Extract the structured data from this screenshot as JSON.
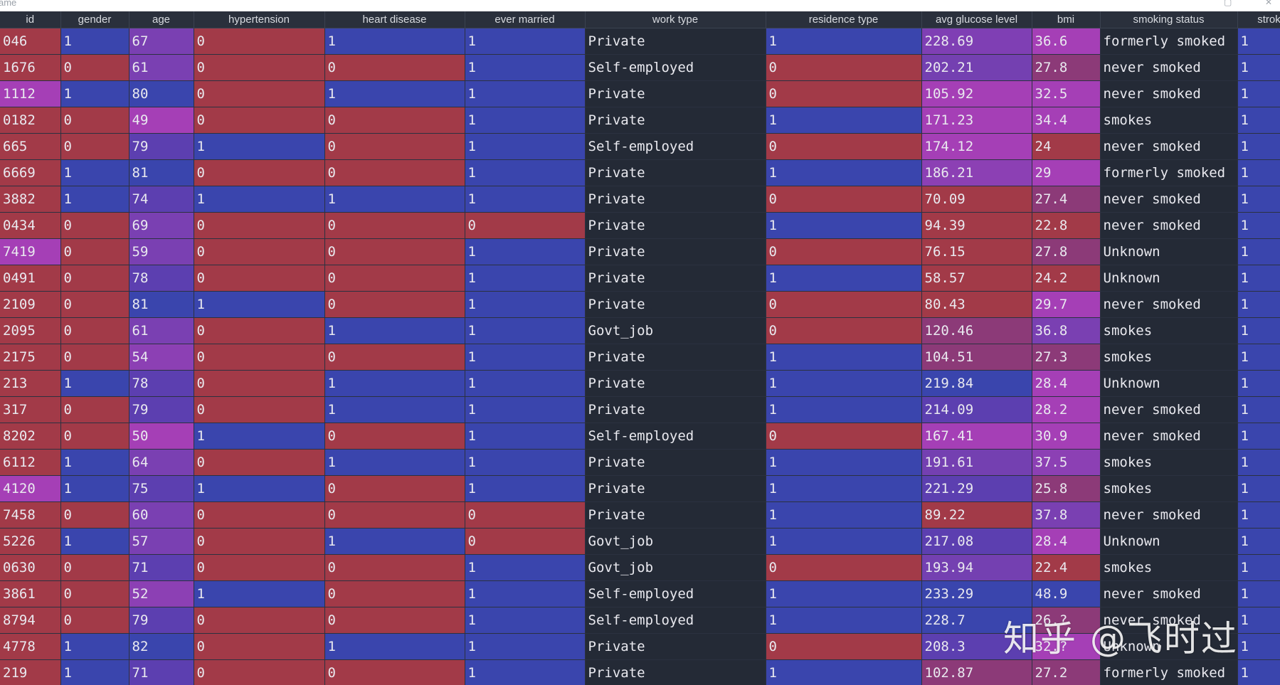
{
  "window": {
    "title": "ame",
    "restore_glyph": "▢",
    "close_glyph": "✕"
  },
  "columns": [
    "id",
    "gender",
    "age",
    "hypertension",
    "heart disease",
    "ever married",
    "work type",
    "residence type",
    "avg glucose level",
    "bmi",
    "smoking status",
    "strok"
  ],
  "rows": [
    [
      "046",
      "1",
      "67",
      "0",
      "1",
      "1",
      "Private",
      "1",
      "228.69",
      "36.6",
      "formerly smoked",
      "1"
    ],
    [
      "1676",
      "0",
      "61",
      "0",
      "0",
      "1",
      "Self-employed",
      "0",
      "202.21",
      "27.8",
      "never smoked",
      "1"
    ],
    [
      "1112",
      "1",
      "80",
      "0",
      "1",
      "1",
      "Private",
      "0",
      "105.92",
      "32.5",
      "never smoked",
      "1"
    ],
    [
      "0182",
      "0",
      "49",
      "0",
      "0",
      "1",
      "Private",
      "1",
      "171.23",
      "34.4",
      "smokes",
      "1"
    ],
    [
      "665",
      "0",
      "79",
      "1",
      "0",
      "1",
      "Self-employed",
      "0",
      "174.12",
      "24",
      "never smoked",
      "1"
    ],
    [
      "6669",
      "1",
      "81",
      "0",
      "0",
      "1",
      "Private",
      "1",
      "186.21",
      "29",
      "formerly smoked",
      "1"
    ],
    [
      "3882",
      "1",
      "74",
      "1",
      "1",
      "1",
      "Private",
      "0",
      "70.09",
      "27.4",
      "never smoked",
      "1"
    ],
    [
      "0434",
      "0",
      "69",
      "0",
      "0",
      "0",
      "Private",
      "1",
      "94.39",
      "22.8",
      "never smoked",
      "1"
    ],
    [
      "7419",
      "0",
      "59",
      "0",
      "0",
      "1",
      "Private",
      "0",
      "76.15",
      "27.8",
      "Unknown",
      "1"
    ],
    [
      "0491",
      "0",
      "78",
      "0",
      "0",
      "1",
      "Private",
      "1",
      "58.57",
      "24.2",
      "Unknown",
      "1"
    ],
    [
      "2109",
      "0",
      "81",
      "1",
      "0",
      "1",
      "Private",
      "0",
      "80.43",
      "29.7",
      "never smoked",
      "1"
    ],
    [
      "2095",
      "0",
      "61",
      "0",
      "1",
      "1",
      "Govt_job",
      "0",
      "120.46",
      "36.8",
      "smokes",
      "1"
    ],
    [
      "2175",
      "0",
      "54",
      "0",
      "0",
      "1",
      "Private",
      "1",
      "104.51",
      "27.3",
      "smokes",
      "1"
    ],
    [
      "213",
      "1",
      "78",
      "0",
      "1",
      "1",
      "Private",
      "1",
      "219.84",
      "28.4",
      "Unknown",
      "1"
    ],
    [
      "317",
      "0",
      "79",
      "0",
      "1",
      "1",
      "Private",
      "1",
      "214.09",
      "28.2",
      "never smoked",
      "1"
    ],
    [
      "8202",
      "0",
      "50",
      "1",
      "0",
      "1",
      "Self-employed",
      "0",
      "167.41",
      "30.9",
      "never smoked",
      "1"
    ],
    [
      "6112",
      "1",
      "64",
      "0",
      "1",
      "1",
      "Private",
      "1",
      "191.61",
      "37.5",
      "smokes",
      "1"
    ],
    [
      "4120",
      "1",
      "75",
      "1",
      "0",
      "1",
      "Private",
      "1",
      "221.29",
      "25.8",
      "smokes",
      "1"
    ],
    [
      "7458",
      "0",
      "60",
      "0",
      "0",
      "0",
      "Private",
      "1",
      "89.22",
      "37.8",
      "never smoked",
      "1"
    ],
    [
      "5226",
      "1",
      "57",
      "0",
      "1",
      "0",
      "Govt_job",
      "1",
      "217.08",
      "28.4",
      "Unknown",
      "1"
    ],
    [
      "0630",
      "0",
      "71",
      "0",
      "0",
      "1",
      "Govt_job",
      "0",
      "193.94",
      "22.4",
      "smokes",
      "1"
    ],
    [
      "3861",
      "0",
      "52",
      "1",
      "0",
      "1",
      "Self-employed",
      "1",
      "233.29",
      "48.9",
      "never smoked",
      "1"
    ],
    [
      "8794",
      "0",
      "79",
      "0",
      "0",
      "1",
      "Self-employed",
      "1",
      "228.7",
      "26.?",
      "never smoked",
      "1"
    ],
    [
      "4778",
      "1",
      "82",
      "0",
      "1",
      "1",
      "Private",
      "0",
      "208.3",
      "32.?",
      "Unknown",
      "1"
    ],
    [
      "219",
      "1",
      "71",
      "0",
      "0",
      "1",
      "Private",
      "1",
      "102.87",
      "27.2",
      "formerly smoked",
      "1"
    ]
  ],
  "cell_colors": [
    [
      "#a23a48",
      "#3a45ad",
      "#7a40b2",
      "#a23a48",
      "#3a45ad",
      "#3a45ad",
      "#242a36",
      "#3a45ad",
      "#7f3fb4",
      "#a53fb6",
      "#242a36",
      "#3a45ad"
    ],
    [
      "#a23a48",
      "#a23a48",
      "#7a40b2",
      "#a23a48",
      "#a23a48",
      "#3a45ad",
      "#242a36",
      "#a23a48",
      "#7440b1",
      "#8c3a78",
      "#242a36",
      "#3a45ad"
    ],
    [
      "#a53fb6",
      "#3a45ad",
      "#3a45ad",
      "#a23a48",
      "#3a45ad",
      "#3a45ad",
      "#242a36",
      "#a23a48",
      "#a53fb6",
      "#a53fb6",
      "#242a36",
      "#3a45ad"
    ],
    [
      "#a23a48",
      "#a23a48",
      "#a53fb6",
      "#a23a48",
      "#a23a48",
      "#3a45ad",
      "#242a36",
      "#3a45ad",
      "#a53fb6",
      "#a53fb6",
      "#242a36",
      "#3a45ad"
    ],
    [
      "#a23a48",
      "#a23a48",
      "#5c3fb0",
      "#3a45ad",
      "#a23a48",
      "#3a45ad",
      "#242a36",
      "#a23a48",
      "#a53fb6",
      "#a23a48",
      "#242a36",
      "#3a45ad"
    ],
    [
      "#a23a48",
      "#3a45ad",
      "#3a45ad",
      "#a23a48",
      "#a23a48",
      "#3a45ad",
      "#242a36",
      "#3a45ad",
      "#8c40b4",
      "#a53fb6",
      "#242a36",
      "#3a45ad"
    ],
    [
      "#a23a48",
      "#3a45ad",
      "#5c3fb0",
      "#3a45ad",
      "#3a45ad",
      "#3a45ad",
      "#242a36",
      "#a23a48",
      "#a23a48",
      "#8c3a78",
      "#242a36",
      "#3a45ad"
    ],
    [
      "#a23a48",
      "#a23a48",
      "#7a40b2",
      "#a23a48",
      "#a23a48",
      "#a23a48",
      "#242a36",
      "#3a45ad",
      "#a23a48",
      "#a23a48",
      "#242a36",
      "#3a45ad"
    ],
    [
      "#a53fb6",
      "#a23a48",
      "#7a40b2",
      "#a23a48",
      "#a23a48",
      "#3a45ad",
      "#242a36",
      "#a23a48",
      "#a23a48",
      "#8c3a78",
      "#242a36",
      "#3a45ad"
    ],
    [
      "#a23a48",
      "#a23a48",
      "#5c3fb0",
      "#a23a48",
      "#a23a48",
      "#3a45ad",
      "#242a36",
      "#3a45ad",
      "#a23a48",
      "#a23a48",
      "#242a36",
      "#3a45ad"
    ],
    [
      "#a23a48",
      "#a23a48",
      "#3a45ad",
      "#3a45ad",
      "#a23a48",
      "#3a45ad",
      "#242a36",
      "#a23a48",
      "#a23a48",
      "#a53fb6",
      "#242a36",
      "#3a45ad"
    ],
    [
      "#a23a48",
      "#a23a48",
      "#7a40b2",
      "#a23a48",
      "#3a45ad",
      "#3a45ad",
      "#242a36",
      "#a23a48",
      "#8c3a78",
      "#7a40b2",
      "#242a36",
      "#3a45ad"
    ],
    [
      "#a23a48",
      "#a23a48",
      "#8c40b4",
      "#a23a48",
      "#a23a48",
      "#3a45ad",
      "#242a36",
      "#3a45ad",
      "#8c3a78",
      "#8c3a78",
      "#242a36",
      "#3a45ad"
    ],
    [
      "#a23a48",
      "#3a45ad",
      "#5c3fb0",
      "#a23a48",
      "#3a45ad",
      "#3a45ad",
      "#242a36",
      "#3a45ad",
      "#3a45ad",
      "#a53fb6",
      "#242a36",
      "#3a45ad"
    ],
    [
      "#a23a48",
      "#a23a48",
      "#5c3fb0",
      "#a23a48",
      "#3a45ad",
      "#3a45ad",
      "#242a36",
      "#3a45ad",
      "#5c3fb0",
      "#a53fb6",
      "#242a36",
      "#3a45ad"
    ],
    [
      "#a23a48",
      "#a23a48",
      "#a53fb6",
      "#3a45ad",
      "#a23a48",
      "#3a45ad",
      "#242a36",
      "#a23a48",
      "#a53fb6",
      "#a53fb6",
      "#242a36",
      "#3a45ad"
    ],
    [
      "#a23a48",
      "#3a45ad",
      "#7a40b2",
      "#a23a48",
      "#3a45ad",
      "#3a45ad",
      "#242a36",
      "#3a45ad",
      "#7440b1",
      "#8c40b4",
      "#242a36",
      "#3a45ad"
    ],
    [
      "#a53fb6",
      "#3a45ad",
      "#5c3fb0",
      "#3a45ad",
      "#a23a48",
      "#3a45ad",
      "#242a36",
      "#3a45ad",
      "#5c3fb0",
      "#8c3a78",
      "#242a36",
      "#3a45ad"
    ],
    [
      "#a23a48",
      "#a23a48",
      "#7a40b2",
      "#a23a48",
      "#a23a48",
      "#a23a48",
      "#242a36",
      "#3a45ad",
      "#a23a48",
      "#7a40b2",
      "#242a36",
      "#3a45ad"
    ],
    [
      "#a23a48",
      "#3a45ad",
      "#7a40b2",
      "#a23a48",
      "#3a45ad",
      "#a23a48",
      "#242a36",
      "#3a45ad",
      "#5c3fb0",
      "#a53fb6",
      "#242a36",
      "#3a45ad"
    ],
    [
      "#a23a48",
      "#a23a48",
      "#5c3fb0",
      "#a23a48",
      "#a23a48",
      "#3a45ad",
      "#242a36",
      "#a23a48",
      "#7440b1",
      "#a23a48",
      "#242a36",
      "#3a45ad"
    ],
    [
      "#a23a48",
      "#a23a48",
      "#8c40b4",
      "#3a45ad",
      "#a23a48",
      "#3a45ad",
      "#242a36",
      "#3a45ad",
      "#3a45ad",
      "#3a45ad",
      "#242a36",
      "#3a45ad"
    ],
    [
      "#a23a48",
      "#a23a48",
      "#5c3fb0",
      "#a23a48",
      "#a23a48",
      "#3a45ad",
      "#242a36",
      "#3a45ad",
      "#3a45ad",
      "#8c3a78",
      "#242a36",
      "#3a45ad"
    ],
    [
      "#a23a48",
      "#3a45ad",
      "#3a45ad",
      "#a23a48",
      "#3a45ad",
      "#3a45ad",
      "#242a36",
      "#a23a48",
      "#5c3fb0",
      "#a53fb6",
      "#242a36",
      "#3a45ad"
    ],
    [
      "#a23a48",
      "#3a45ad",
      "#5c3fb0",
      "#a23a48",
      "#a23a48",
      "#3a45ad",
      "#242a36",
      "#3a45ad",
      "#8c3a78",
      "#8c3a78",
      "#242a36",
      "#3a45ad"
    ]
  ],
  "watermark": "知乎 @飞时过"
}
